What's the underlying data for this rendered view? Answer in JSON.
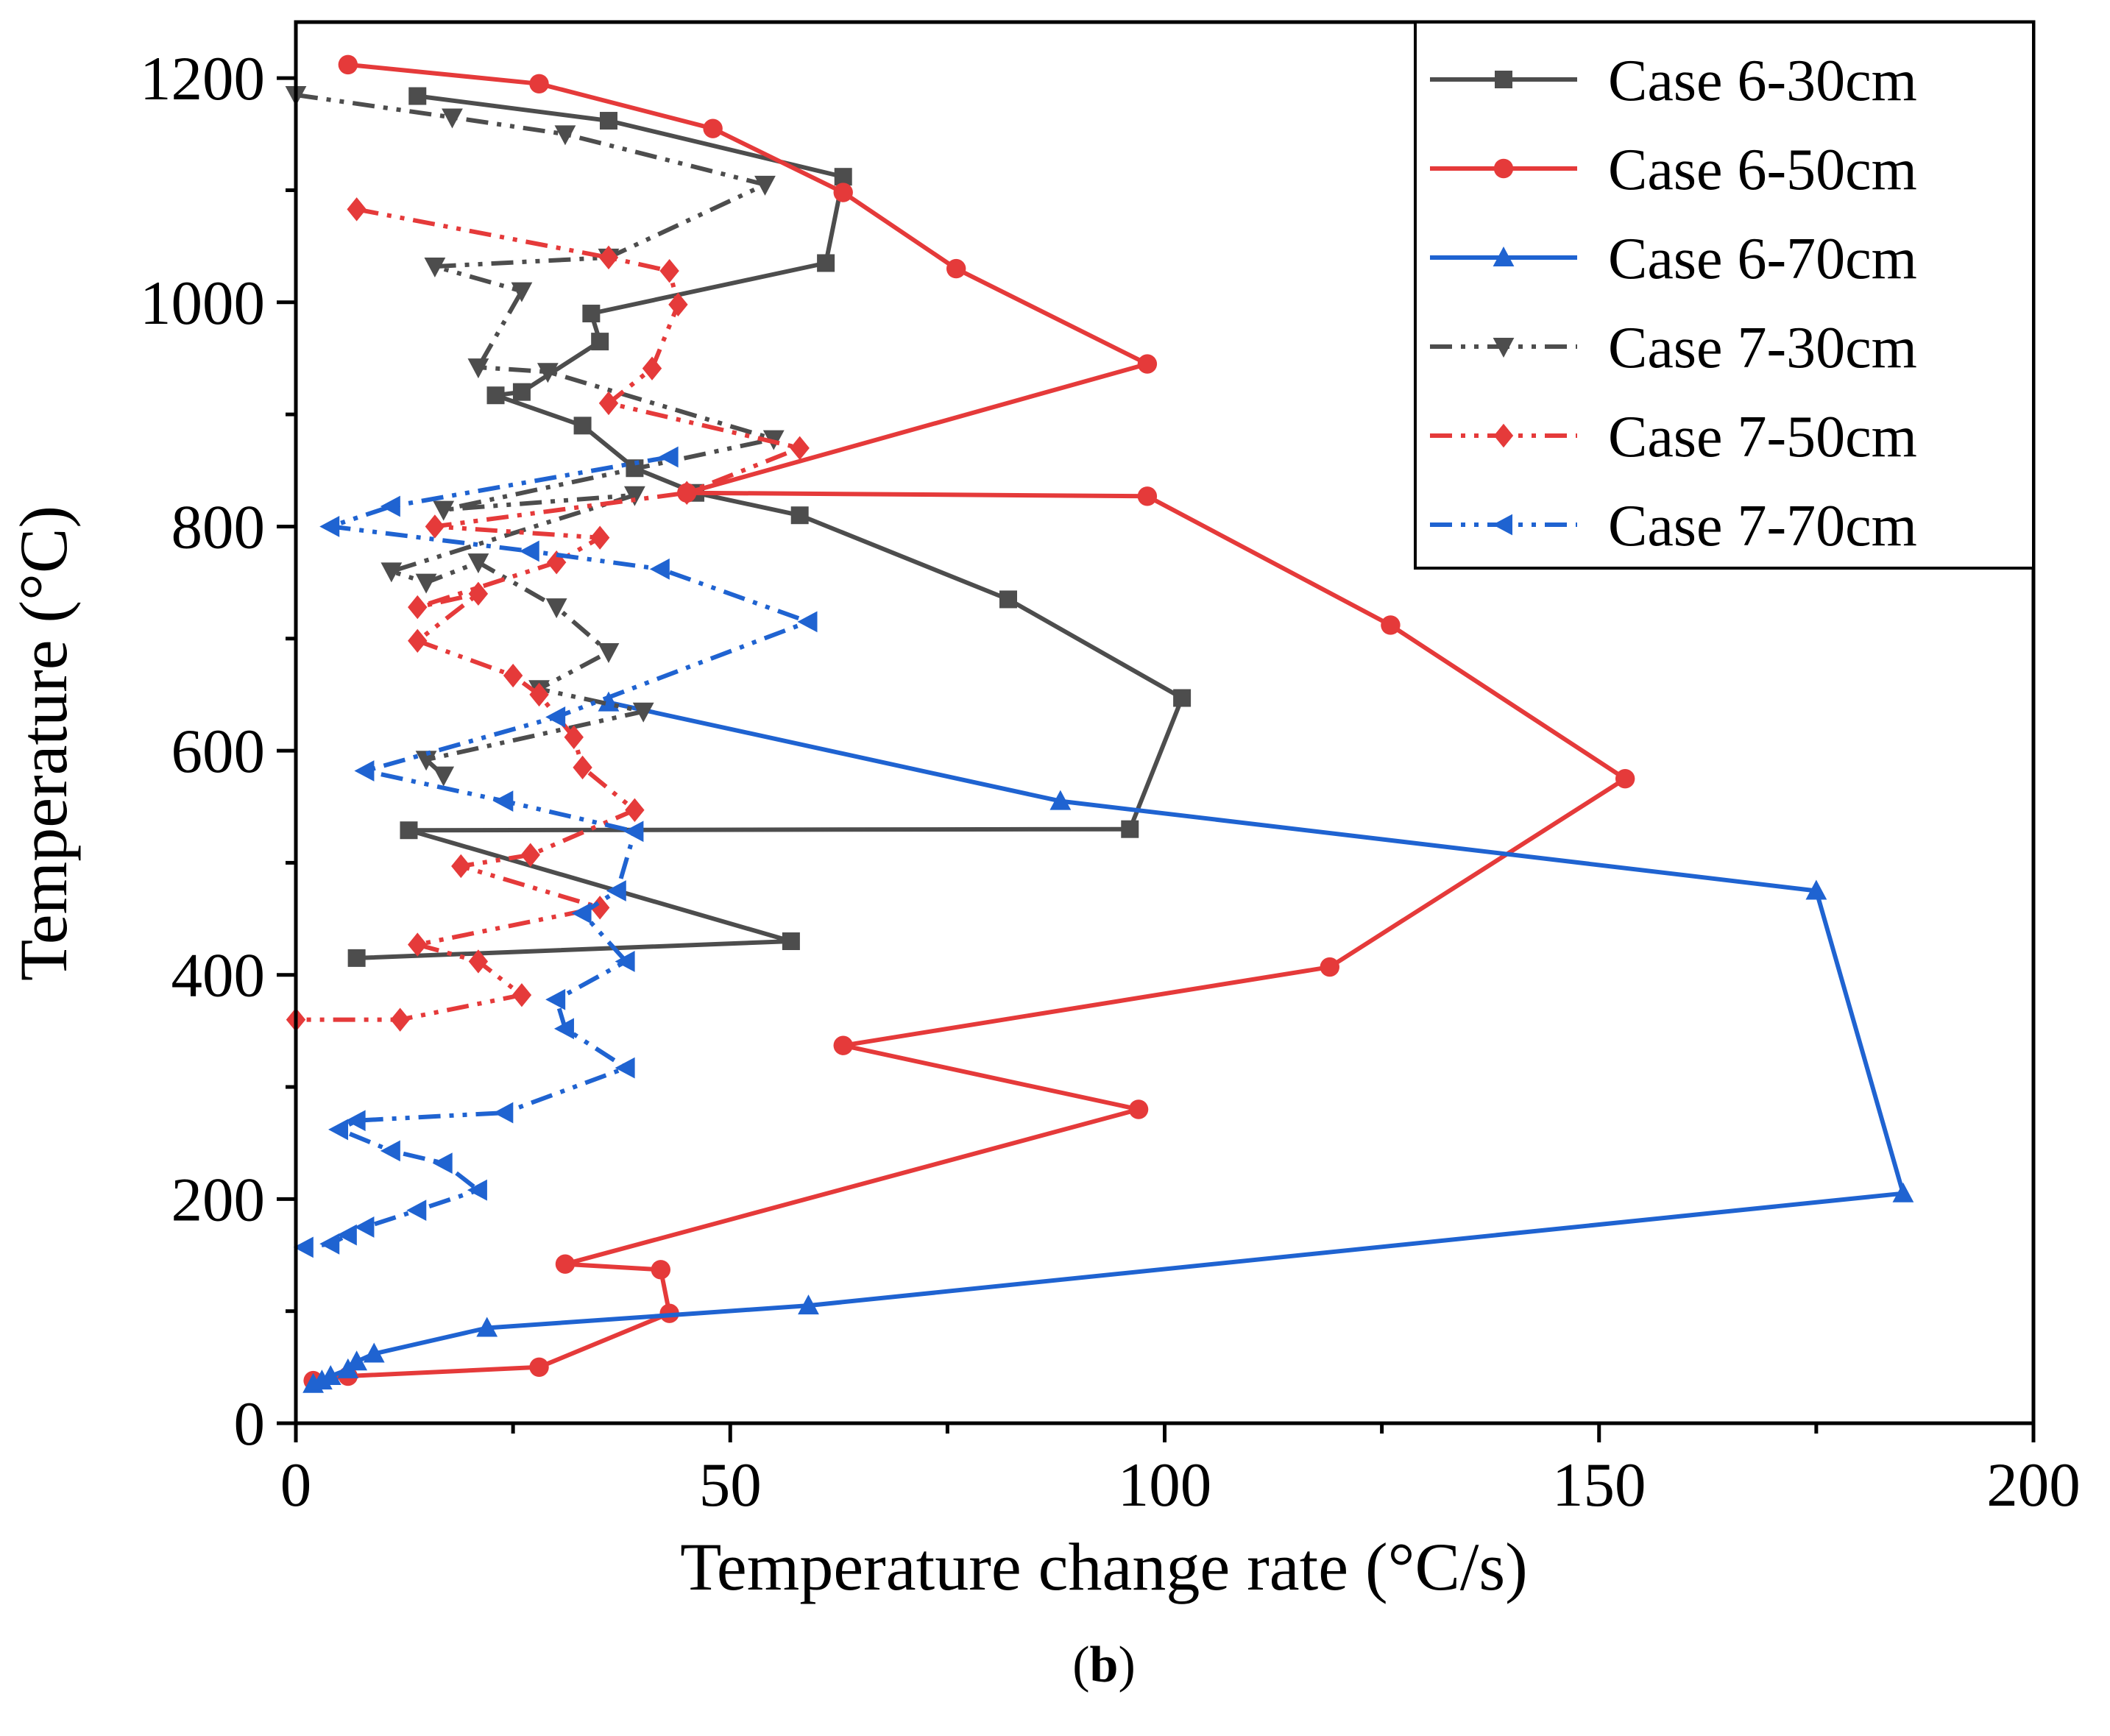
{
  "chart_data": {
    "type": "line",
    "title": "",
    "xlabel": "Temperature change rate (°C/s)",
    "ylabel": "Temperature (°C)",
    "xlim": [
      0,
      200
    ],
    "ylim": [
      0,
      1250
    ],
    "xticks": [
      0,
      50,
      100,
      150,
      200
    ],
    "yticks": [
      0,
      200,
      400,
      600,
      800,
      1000,
      1200
    ],
    "xtick_labels": [
      "0",
      "50",
      "100",
      "150",
      "200"
    ],
    "ytick_labels": [
      "0",
      "200",
      "400",
      "600",
      "800",
      "1000",
      "1200"
    ],
    "grid": false,
    "legend_position": "top-right",
    "panel_label": {
      "open": "(",
      "letter": "b",
      "close": ")"
    },
    "series": [
      {
        "name": "Case 6-30cm",
        "color": "#4d4d4d",
        "dash": "solid",
        "marker": "square",
        "points": [
          [
            14,
            1184
          ],
          [
            36,
            1162
          ],
          [
            63,
            1112
          ],
          [
            61,
            1035
          ],
          [
            34,
            990
          ],
          [
            35,
            965
          ],
          [
            26,
            920
          ],
          [
            23,
            917
          ],
          [
            33,
            890
          ],
          [
            39,
            852
          ],
          [
            46,
            830
          ],
          [
            58,
            810
          ],
          [
            82,
            735
          ],
          [
            102,
            647
          ],
          [
            96,
            530
          ],
          [
            13,
            529
          ],
          [
            57,
            430
          ],
          [
            7,
            415
          ]
        ]
      },
      {
        "name": "Case 6-50cm",
        "color": "#e53a3a",
        "dash": "solid",
        "marker": "circle",
        "points": [
          [
            6,
            1212
          ],
          [
            28,
            1195
          ],
          [
            48,
            1155
          ],
          [
            63,
            1098
          ],
          [
            76,
            1030
          ],
          [
            98,
            945
          ],
          [
            45,
            830
          ],
          [
            98,
            827
          ],
          [
            126,
            712
          ],
          [
            153,
            575
          ],
          [
            119,
            407
          ],
          [
            63,
            337
          ],
          [
            97,
            280
          ],
          [
            31,
            142
          ],
          [
            42,
            137
          ],
          [
            43,
            98
          ],
          [
            28,
            50
          ],
          [
            6,
            42
          ],
          [
            2,
            38
          ]
        ]
      },
      {
        "name": "Case 6-70cm",
        "color": "#1f63d1",
        "dash": "solid",
        "marker": "triangle-up",
        "points": [
          [
            2,
            35
          ],
          [
            3,
            38
          ],
          [
            4,
            42
          ],
          [
            6,
            48
          ],
          [
            7,
            55
          ],
          [
            9,
            62
          ],
          [
            22,
            85
          ],
          [
            59,
            105
          ],
          [
            185,
            205
          ],
          [
            175,
            475
          ],
          [
            88,
            555
          ],
          [
            36,
            643
          ]
        ]
      },
      {
        "name": "Case 7-30cm",
        "color": "#4d4d4d",
        "dash": "dashdotdot",
        "marker": "triangle-down",
        "points": [
          [
            0,
            1185
          ],
          [
            18,
            1165
          ],
          [
            31,
            1150
          ],
          [
            54,
            1105
          ],
          [
            36,
            1040
          ],
          [
            16,
            1032
          ],
          [
            26,
            1010
          ],
          [
            21,
            942
          ],
          [
            29,
            938
          ],
          [
            55,
            878
          ],
          [
            17,
            815
          ],
          [
            39,
            828
          ],
          [
            11,
            760
          ],
          [
            15,
            750
          ],
          [
            21,
            768
          ],
          [
            30,
            728
          ],
          [
            36,
            688
          ],
          [
            28,
            655
          ],
          [
            40,
            635
          ],
          [
            15,
            592
          ],
          [
            17,
            578
          ]
        ]
      },
      {
        "name": "Case 7-50cm",
        "color": "#e53a3a",
        "dash": "dashdotdot",
        "marker": "diamond",
        "points": [
          [
            7,
            1083
          ],
          [
            36,
            1040
          ],
          [
            43,
            1028
          ],
          [
            44,
            998
          ],
          [
            41,
            941
          ],
          [
            36,
            910
          ],
          [
            58,
            870
          ],
          [
            45,
            830
          ],
          [
            16,
            800
          ],
          [
            35,
            790
          ],
          [
            30,
            768
          ],
          [
            14,
            728
          ],
          [
            21,
            740
          ],
          [
            14,
            698
          ],
          [
            25,
            667
          ],
          [
            28,
            650
          ],
          [
            32,
            612
          ],
          [
            33,
            585
          ],
          [
            39,
            547
          ],
          [
            27,
            507
          ],
          [
            19,
            497
          ],
          [
            35,
            460
          ],
          [
            14,
            427
          ],
          [
            21,
            412
          ],
          [
            26,
            382
          ],
          [
            12,
            360
          ],
          [
            0,
            360
          ]
        ]
      },
      {
        "name": "Case 7-70cm",
        "color": "#1f63d1",
        "dash": "dashdotdot",
        "marker": "triangle-left",
        "points": [
          [
            43,
            862
          ],
          [
            11,
            818
          ],
          [
            4,
            800
          ],
          [
            27,
            778
          ],
          [
            42,
            762
          ],
          [
            59,
            715
          ],
          [
            30,
            630
          ],
          [
            8,
            582
          ],
          [
            24,
            555
          ],
          [
            39,
            528
          ],
          [
            37,
            475
          ],
          [
            33,
            455
          ],
          [
            38,
            412
          ],
          [
            30,
            378
          ],
          [
            31,
            352
          ],
          [
            38,
            317
          ],
          [
            24,
            277
          ],
          [
            7,
            270
          ],
          [
            5,
            262
          ],
          [
            11,
            243
          ],
          [
            17,
            232
          ],
          [
            21,
            208
          ],
          [
            14,
            190
          ],
          [
            8,
            175
          ],
          [
            6,
            168
          ],
          [
            4,
            160
          ],
          [
            1,
            157
          ]
        ]
      }
    ]
  }
}
